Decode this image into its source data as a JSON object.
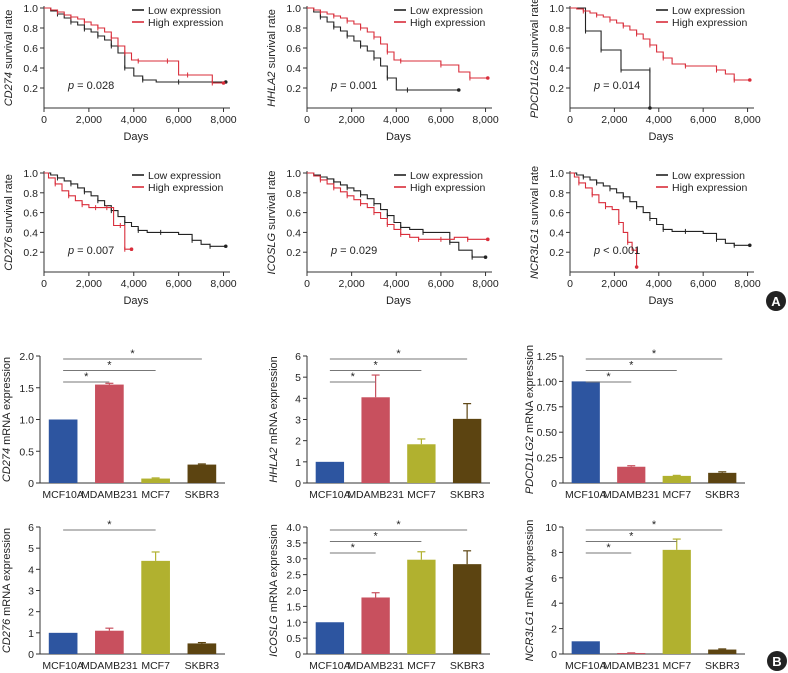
{
  "panels": {
    "a_label": "A",
    "b_label": "B"
  },
  "colors": {
    "low": "#222222",
    "high": "#d92d3a",
    "MCF10A": "#2d55a0",
    "MDAMB231": "#c8505e",
    "MCF7": "#b1b12f",
    "SKBR3": "#5c4411"
  },
  "chart_data": [
    {
      "type": "line",
      "gene": "CD274",
      "ylabel_gene": "CD274",
      "ylabel_rest": " survival rate",
      "xlabel": "Days",
      "xlim": [
        0,
        8200
      ],
      "ylim": [
        0,
        1.0
      ],
      "xticks": [
        "0",
        "2,000",
        "4,000",
        "6,000",
        "8,000"
      ],
      "xtick_values": [
        0,
        2000,
        4000,
        6000,
        8000
      ],
      "yticks": [
        "0.2",
        "0.4",
        "0.6",
        "0.8",
        "1.0"
      ],
      "ytick_values": [
        0.2,
        0.4,
        0.6,
        0.8,
        1.0
      ],
      "legend": [
        "Low expression",
        "High expression"
      ],
      "p_prefix": "p",
      "p_text": " = 0.028",
      "series": [
        {
          "name": "Low expression",
          "x": [
            0,
            300,
            600,
            900,
            1200,
            1500,
            1800,
            2100,
            2400,
            2700,
            3000,
            3300,
            3600,
            4000,
            4400,
            5000,
            6000,
            7000,
            8100
          ],
          "y": [
            1.0,
            0.97,
            0.94,
            0.9,
            0.86,
            0.83,
            0.79,
            0.76,
            0.72,
            0.68,
            0.62,
            0.55,
            0.4,
            0.32,
            0.28,
            0.26,
            0.26,
            0.26,
            0.26
          ]
        },
        {
          "name": "High expression",
          "x": [
            0,
            300,
            600,
            900,
            1200,
            1500,
            1800,
            2100,
            2400,
            2700,
            3000,
            3300,
            3600,
            3900,
            4200,
            5000,
            5500,
            6000,
            6400,
            7000,
            7500,
            8000
          ],
          "y": [
            1.0,
            0.98,
            0.96,
            0.93,
            0.91,
            0.89,
            0.86,
            0.83,
            0.8,
            0.76,
            0.7,
            0.62,
            0.55,
            0.48,
            0.47,
            0.47,
            0.47,
            0.33,
            0.33,
            0.33,
            0.25,
            0.25
          ]
        }
      ]
    },
    {
      "type": "line",
      "gene": "HHLA2",
      "ylabel_gene": "HHLA2",
      "ylabel_rest": " survival rate",
      "xlabel": "Days",
      "xlim": [
        0,
        8200
      ],
      "ylim": [
        0,
        1.0
      ],
      "xticks": [
        "0",
        "2,000",
        "4,000",
        "6,000",
        "8,000"
      ],
      "xtick_values": [
        0,
        2000,
        4000,
        6000,
        8000
      ],
      "yticks": [
        "0.2",
        "0.4",
        "0.6",
        "0.8",
        "1.0"
      ],
      "ytick_values": [
        0.2,
        0.4,
        0.6,
        0.8,
        1.0
      ],
      "legend": [
        "Low expression",
        "High expression"
      ],
      "p_prefix": "p",
      "p_text": " = 0.001",
      "series": [
        {
          "name": "Low expression",
          "x": [
            0,
            300,
            600,
            900,
            1200,
            1500,
            1800,
            2100,
            2400,
            2700,
            3000,
            3300,
            3600,
            4000,
            4500,
            5500,
            6800
          ],
          "y": [
            1.0,
            0.96,
            0.91,
            0.86,
            0.81,
            0.77,
            0.72,
            0.67,
            0.62,
            0.57,
            0.5,
            0.42,
            0.3,
            0.18,
            0.18,
            0.18,
            0.18
          ]
        },
        {
          "name": "High expression",
          "x": [
            0,
            300,
            600,
            900,
            1200,
            1500,
            1800,
            2100,
            2400,
            2700,
            3000,
            3300,
            3600,
            3900,
            4200,
            5000,
            6000,
            6800,
            7300,
            8100
          ],
          "y": [
            1.0,
            0.98,
            0.96,
            0.94,
            0.92,
            0.9,
            0.87,
            0.84,
            0.8,
            0.76,
            0.71,
            0.64,
            0.56,
            0.48,
            0.47,
            0.47,
            0.43,
            0.36,
            0.3,
            0.3
          ]
        }
      ]
    },
    {
      "type": "line",
      "gene": "PDCD1LG2",
      "ylabel_gene": "PDCD1LG2",
      "ylabel_rest": " survival rate",
      "xlabel": "Days",
      "xlim": [
        0,
        8200
      ],
      "ylim": [
        0,
        1.0
      ],
      "xticks": [
        "0",
        "2,000",
        "4,000",
        "6,000",
        "8,000"
      ],
      "xtick_values": [
        0,
        2000,
        4000,
        6000,
        8000
      ],
      "yticks": [
        "0.2",
        "0.4",
        "0.6",
        "0.8",
        "1.0"
      ],
      "ytick_values": [
        0.2,
        0.4,
        0.6,
        0.8,
        1.0
      ],
      "legend": [
        "Low expression",
        "High expression"
      ],
      "p_prefix": "p",
      "p_text": " = 0.014",
      "series": [
        {
          "name": "Low expression",
          "x": [
            0,
            400,
            700,
            1000,
            1400,
            2000,
            2300,
            3000,
            3600,
            3601
          ],
          "y": [
            1.0,
            1.0,
            0.77,
            0.77,
            0.58,
            0.58,
            0.38,
            0.38,
            0.38,
            0.0
          ]
        },
        {
          "name": "High expression",
          "x": [
            0,
            300,
            600,
            900,
            1200,
            1500,
            1800,
            2100,
            2400,
            2700,
            3000,
            3300,
            3600,
            3900,
            4200,
            4600,
            5200,
            6000,
            6600,
            7000,
            7400,
            8100
          ],
          "y": [
            1.0,
            0.99,
            0.97,
            0.95,
            0.93,
            0.91,
            0.88,
            0.85,
            0.82,
            0.78,
            0.74,
            0.69,
            0.63,
            0.56,
            0.5,
            0.44,
            0.42,
            0.42,
            0.38,
            0.34,
            0.28,
            0.28
          ]
        }
      ]
    },
    {
      "type": "line",
      "gene": "CD276",
      "ylabel_gene": "CD276",
      "ylabel_rest": " survival rate",
      "xlabel": "Days",
      "xlim": [
        0,
        8200
      ],
      "ylim": [
        0,
        1.0
      ],
      "xticks": [
        "0",
        "2,000",
        "4,000",
        "6,000",
        "8,000"
      ],
      "xtick_values": [
        0,
        2000,
        4000,
        6000,
        8000
      ],
      "yticks": [
        "0.2",
        "0.4",
        "0.6",
        "0.8",
        "1.0"
      ],
      "ytick_values": [
        0.2,
        0.4,
        0.6,
        0.8,
        1.0
      ],
      "legend": [
        "Low expression",
        "High expression"
      ],
      "p_prefix": "p",
      "p_text": " = 0.007",
      "series": [
        {
          "name": "Low expression",
          "x": [
            0,
            300,
            600,
            900,
            1200,
            1500,
            1800,
            2100,
            2400,
            2700,
            3000,
            3300,
            3600,
            3900,
            4200,
            4600,
            5200,
            6000,
            6600,
            7000,
            7400,
            8100
          ],
          "y": [
            1.0,
            0.98,
            0.95,
            0.92,
            0.89,
            0.85,
            0.81,
            0.77,
            0.72,
            0.67,
            0.62,
            0.56,
            0.5,
            0.46,
            0.42,
            0.4,
            0.4,
            0.38,
            0.32,
            0.28,
            0.26,
            0.26
          ]
        },
        {
          "name": "High expression",
          "x": [
            0,
            200,
            500,
            800,
            1100,
            1400,
            1700,
            2000,
            2300,
            2600,
            2800,
            3100,
            3400,
            3600,
            3601,
            3900
          ],
          "y": [
            1.0,
            0.95,
            0.89,
            0.82,
            0.77,
            0.72,
            0.68,
            0.65,
            0.65,
            0.65,
            0.65,
            0.47,
            0.47,
            0.47,
            0.23,
            0.23
          ]
        }
      ]
    },
    {
      "type": "line",
      "gene": "ICOSLG",
      "ylabel_gene": "ICOSLG",
      "ylabel_rest": " survival rate",
      "xlabel": "Days",
      "xlim": [
        0,
        8200
      ],
      "ylim": [
        0,
        1.0
      ],
      "xticks": [
        "0",
        "2,000",
        "4,000",
        "6,000",
        "8,000"
      ],
      "xtick_values": [
        0,
        2000,
        4000,
        6000,
        8000
      ],
      "yticks": [
        "0.2",
        "0.4",
        "0.6",
        "0.8",
        "1.0"
      ],
      "ytick_values": [
        0.2,
        0.4,
        0.6,
        0.8,
        1.0
      ],
      "legend": [
        "Low expression",
        "High expression"
      ],
      "p_prefix": "p",
      "p_text": " = 0.029",
      "series": [
        {
          "name": "Low expression",
          "x": [
            0,
            300,
            600,
            900,
            1200,
            1500,
            1800,
            2100,
            2400,
            2700,
            3000,
            3300,
            3600,
            3900,
            4200,
            4600,
            5200,
            5800,
            6400,
            6800,
            7400,
            8000
          ],
          "y": [
            1.0,
            0.98,
            0.96,
            0.94,
            0.91,
            0.88,
            0.85,
            0.82,
            0.78,
            0.74,
            0.69,
            0.63,
            0.57,
            0.5,
            0.45,
            0.43,
            0.4,
            0.4,
            0.3,
            0.22,
            0.15,
            0.15
          ]
        },
        {
          "name": "High expression",
          "x": [
            0,
            300,
            600,
            900,
            1200,
            1500,
            1800,
            2100,
            2400,
            2700,
            3000,
            3300,
            3600,
            3900,
            4200,
            4600,
            5000,
            5500,
            6000,
            6600,
            7200,
            8100
          ],
          "y": [
            1.0,
            0.97,
            0.93,
            0.89,
            0.85,
            0.81,
            0.77,
            0.73,
            0.69,
            0.65,
            0.6,
            0.54,
            0.48,
            0.43,
            0.38,
            0.35,
            0.33,
            0.33,
            0.33,
            0.35,
            0.33,
            0.33
          ]
        }
      ]
    },
    {
      "type": "line",
      "gene": "NCR3LG1",
      "ylabel_gene": "NCR3LG1",
      "ylabel_rest": " survival rate",
      "xlabel": "Days",
      "xlim": [
        0,
        8200
      ],
      "ylim": [
        0,
        1.0
      ],
      "xticks": [
        "0",
        "2,000",
        "4,000",
        "6,000",
        "8,000"
      ],
      "xtick_values": [
        0,
        2000,
        4000,
        6000,
        8000
      ],
      "yticks": [
        "0.2",
        "0.4",
        "0.6",
        "0.8",
        "1.0"
      ],
      "ytick_values": [
        0.2,
        0.4,
        0.6,
        0.8,
        1.0
      ],
      "legend": [
        "Low expression",
        "High expression"
      ],
      "p_prefix": "p",
      "p_text": " < 0.001",
      "series": [
        {
          "name": "Low expression",
          "x": [
            0,
            300,
            600,
            900,
            1200,
            1500,
            1800,
            2100,
            2400,
            2700,
            3000,
            3300,
            3600,
            3900,
            4200,
            4600,
            5200,
            6000,
            6600,
            7000,
            7400,
            8100
          ],
          "y": [
            1.0,
            0.98,
            0.96,
            0.93,
            0.9,
            0.87,
            0.84,
            0.8,
            0.76,
            0.71,
            0.66,
            0.6,
            0.54,
            0.48,
            0.43,
            0.41,
            0.41,
            0.39,
            0.33,
            0.29,
            0.27,
            0.27
          ]
        },
        {
          "name": "High expression",
          "x": [
            0,
            200,
            400,
            700,
            1000,
            1300,
            1600,
            1900,
            2200,
            2400,
            2600,
            2800,
            3000,
            3001
          ],
          "y": [
            1.0,
            0.96,
            0.9,
            0.85,
            0.78,
            0.7,
            0.66,
            0.63,
            0.5,
            0.4,
            0.3,
            0.22,
            0.22,
            0.05
          ]
        }
      ]
    },
    {
      "type": "bar",
      "gene": "CD274",
      "ylabel_gene": "CD274",
      "ylabel_rest": " mRNA expression",
      "categories": [
        "MCF10A",
        "MDAMB231",
        "MCF7",
        "SKBR3"
      ],
      "values": [
        1.0,
        1.55,
        0.07,
        0.29
      ],
      "errors": [
        0,
        0.02,
        0.01,
        0.01
      ],
      "ylim": [
        0,
        2.0
      ],
      "yticks": [
        "0",
        "0.5",
        "1.0",
        "1.5",
        "2.0"
      ],
      "ytick_values": [
        0,
        0.5,
        1.0,
        1.5,
        2.0
      ],
      "sig_targets": [
        1,
        2,
        3
      ],
      "sig_label": "*"
    },
    {
      "type": "bar",
      "gene": "HHLA2",
      "ylabel_gene": "HHLA2",
      "ylabel_rest": " mRNA expression",
      "categories": [
        "MCF10A",
        "MDAMB231",
        "MCF7",
        "SKBR3"
      ],
      "values": [
        1.0,
        4.05,
        1.83,
        3.03
      ],
      "errors": [
        0,
        1.05,
        0.25,
        0.72
      ],
      "ylim": [
        0,
        6
      ],
      "yticks": [
        "0",
        "1",
        "2",
        "3",
        "4",
        "5",
        "6"
      ],
      "ytick_values": [
        0,
        1,
        2,
        3,
        4,
        5,
        6
      ],
      "sig_targets": [
        1,
        2,
        3
      ],
      "sig_label": "*"
    },
    {
      "type": "bar",
      "gene": "PDCD1LG2",
      "ylabel_gene": "PDCD1LG2",
      "ylabel_rest": " mRNA expression",
      "categories": [
        "MCF10A",
        "MDAMB231",
        "MCF7",
        "SKBR3"
      ],
      "values": [
        1.0,
        0.16,
        0.07,
        0.1
      ],
      "errors": [
        0,
        0.01,
        0.005,
        0.01
      ],
      "ylim": [
        0,
        1.25
      ],
      "yticks": [
        "0",
        "0.25",
        "0.50",
        "0.75",
        "1.00",
        "1.25"
      ],
      "ytick_values": [
        0,
        0.25,
        0.5,
        0.75,
        1.0,
        1.25
      ],
      "sig_targets": [
        1,
        2,
        3
      ],
      "sig_label": "*"
    },
    {
      "type": "bar",
      "gene": "CD276",
      "ylabel_gene": "CD276",
      "ylabel_rest": " mRNA expression",
      "categories": [
        "MCF10A",
        "MDAMB231",
        "MCF7",
        "SKBR3"
      ],
      "values": [
        1.0,
        1.1,
        4.4,
        0.5
      ],
      "errors": [
        0,
        0.12,
        0.42,
        0.04
      ],
      "ylim": [
        0,
        6
      ],
      "yticks": [
        "0",
        "1",
        "2",
        "3",
        "4",
        "5",
        "6"
      ],
      "ytick_values": [
        0,
        1,
        2,
        3,
        4,
        5,
        6
      ],
      "sig_targets": [
        2
      ],
      "sig_label": "*"
    },
    {
      "type": "bar",
      "gene": "ICOSLG",
      "ylabel_gene": "ICOSLG",
      "ylabel_rest": " mRNA expression",
      "categories": [
        "MCF10A",
        "MDAMB231",
        "MCF7",
        "SKBR3"
      ],
      "values": [
        1.0,
        1.78,
        2.97,
        2.83
      ],
      "errors": [
        0,
        0.15,
        0.25,
        0.42
      ],
      "ylim": [
        0,
        4.0
      ],
      "yticks": [
        "0",
        "0.5",
        "1.0",
        "1.5",
        "2.0",
        "2.5",
        "3.0",
        "3.5",
        "4.0"
      ],
      "ytick_values": [
        0,
        0.5,
        1.0,
        1.5,
        2.0,
        2.5,
        3.0,
        3.5,
        4.0
      ],
      "sig_targets": [
        1,
        2,
        3
      ],
      "sig_label": "*"
    },
    {
      "type": "bar",
      "gene": "NCR3LG1",
      "ylabel_gene": "NCR3LG1",
      "ylabel_rest": " mRNA expression",
      "categories": [
        "MCF10A",
        "MDAMB231",
        "MCF7",
        "SKBR3"
      ],
      "values": [
        1.0,
        0.08,
        8.2,
        0.35
      ],
      "errors": [
        0,
        0.01,
        0.85,
        0.05
      ],
      "ylim": [
        0,
        10
      ],
      "yticks": [
        "0",
        "2",
        "4",
        "6",
        "8",
        "10"
      ],
      "ytick_values": [
        0,
        2,
        4,
        6,
        8,
        10
      ],
      "sig_targets": [
        1,
        2,
        3
      ],
      "sig_label": "*"
    }
  ]
}
